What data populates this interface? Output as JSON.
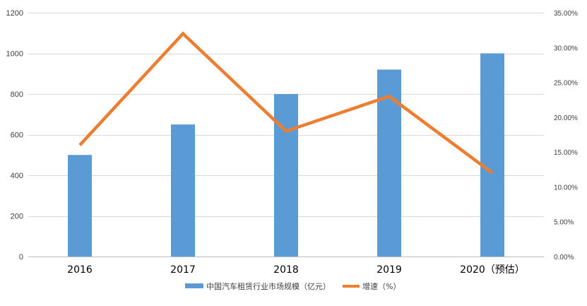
{
  "chart_data": {
    "type": "bar",
    "categories": [
      "2016",
      "2017",
      "2018",
      "2019",
      "2020（预估）"
    ],
    "series": [
      {
        "name": "中国汽车租赁行业市场规模（亿元）",
        "type": "bar",
        "axis": "left",
        "values": [
          500,
          650,
          800,
          920,
          1000
        ],
        "color": "#5B9BD5"
      },
      {
        "name": "增速（%）",
        "type": "line",
        "axis": "right",
        "values": [
          0.16,
          0.32,
          0.18,
          0.23,
          0.12
        ],
        "color": "#ED7D31"
      }
    ],
    "y_left": {
      "min": 0,
      "max": 1200,
      "ticks": [
        0,
        200,
        400,
        600,
        800,
        1000,
        1200
      ],
      "tick_labels": [
        "0",
        "200",
        "400",
        "600",
        "800",
        "1000",
        "1200"
      ]
    },
    "y_right": {
      "min": 0,
      "max": 0.35,
      "ticks": [
        0,
        0.05,
        0.1,
        0.15,
        0.2,
        0.25,
        0.3,
        0.35
      ],
      "tick_labels": [
        "0.00%",
        "5.00%",
        "10.00%",
        "15.00%",
        "20.00%",
        "25.00%",
        "30.00%",
        "35.00%"
      ]
    },
    "grid": true,
    "legend_position": "bottom",
    "gridline_color": "#D9D9D9"
  }
}
